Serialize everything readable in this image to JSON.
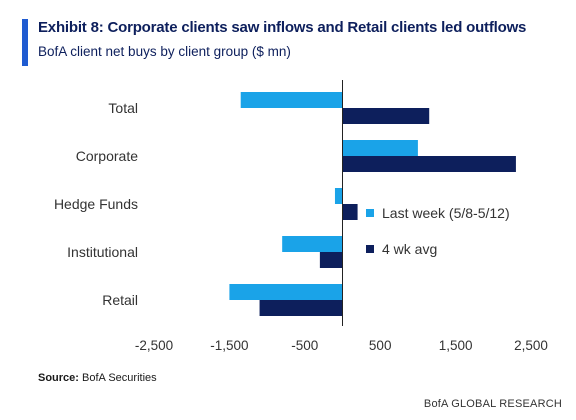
{
  "header": {
    "title": "Exhibit 8: Corporate clients saw inflows and Retail clients led outflows",
    "subtitle": "BofA client net buys by client group ($ mn)"
  },
  "footer": {
    "source_label": "Source:",
    "source_text": "BofA Securities",
    "brand": "BofA GLOBAL RESEARCH"
  },
  "colors": {
    "accent": "#1f5bd1",
    "title": "#0d1f5c",
    "last_week": "#1aa3e8",
    "four_wk_avg": "#0d1f5c"
  },
  "chart_data": {
    "type": "bar",
    "orientation": "horizontal",
    "title": "",
    "xlabel": "",
    "ylabel": "",
    "categories": [
      "Total",
      "Corporate",
      "Hedge Funds",
      "Institutional",
      "Retail"
    ],
    "series": [
      {
        "name": "Last week (5/8-5/12)",
        "values": [
          -1350,
          1000,
          -100,
          -800,
          -1500
        ]
      },
      {
        "name": "4 wk avg",
        "values": [
          1150,
          2300,
          200,
          -300,
          -1100
        ]
      }
    ],
    "xlim": [
      -2500,
      2500
    ],
    "xticks": [
      -2500,
      -1500,
      -500,
      500,
      1500,
      2500
    ],
    "xtick_labels": [
      "-2,500",
      "-1,500",
      "-500",
      "500",
      "1,500",
      "2,500"
    ],
    "grid": false,
    "legend_position": "right, inside"
  }
}
